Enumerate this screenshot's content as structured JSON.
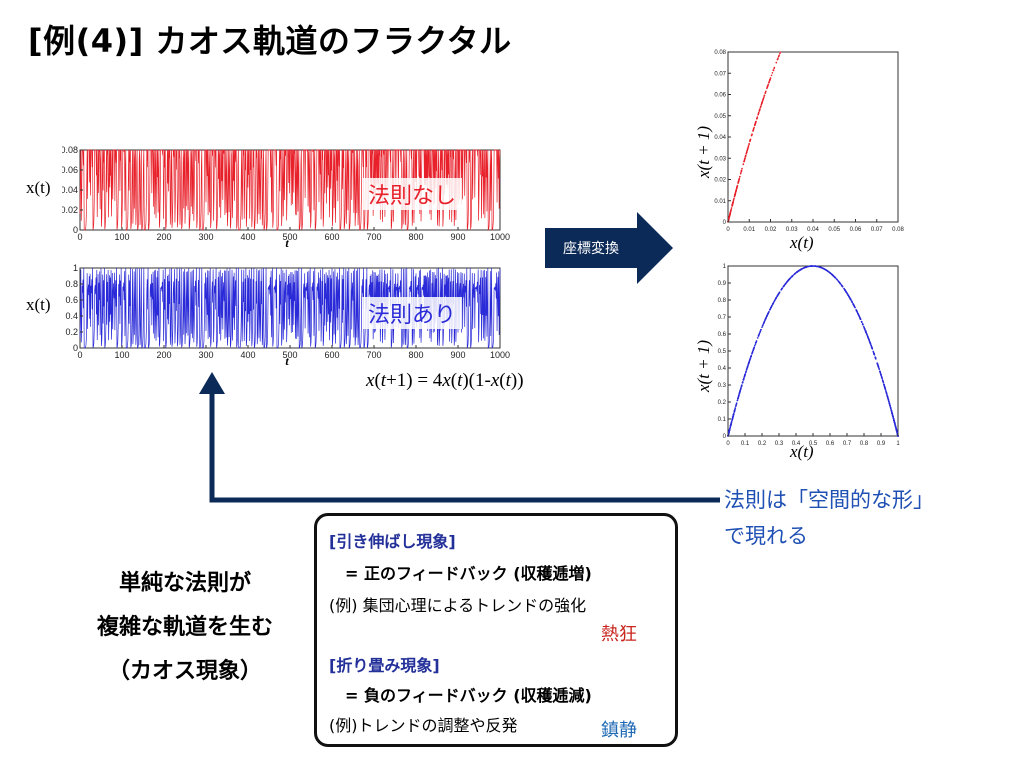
{
  "title": "[例(4)] カオス軌道のフラクタル",
  "colors": {
    "red_series": "#e8202a",
    "blue_series": "#2a2ad8",
    "arrow": "#0c2a58",
    "law_caption": "#1f50b4",
    "heading": "#23309a",
    "frenzy": "#c8261e",
    "calm": "#1f6ab4"
  },
  "timeseries_top": {
    "y_label": "x(t)",
    "x_label": "t",
    "label": "法則なし",
    "x_ticks": [
      "0",
      "100",
      "200",
      "300",
      "400",
      "500",
      "600",
      "700",
      "800",
      "900",
      "1000"
    ],
    "y_ticks": [
      "0",
      "0.02",
      "0.04",
      "0.06",
      "0.08"
    ]
  },
  "timeseries_bottom": {
    "y_label": "x(t)",
    "x_label": "t",
    "label": "法則あり",
    "x_ticks": [
      "0",
      "100",
      "200",
      "300",
      "400",
      "500",
      "600",
      "700",
      "800",
      "900",
      "1000"
    ],
    "y_ticks": [
      "0",
      "0.2",
      "0.4",
      "0.6",
      "0.8",
      "1"
    ]
  },
  "formula": {
    "p1": "x",
    "p2": "(",
    "p3": "t",
    "p4": "+1) = 4",
    "p5": "x",
    "p6": "(",
    "p7": "t",
    "p8": ")(1-",
    "p9": "x",
    "p10": "(",
    "p11": "t",
    "p12": "))"
  },
  "transform_label": "座標変換",
  "scatter": {
    "x_label": "x(t)",
    "y_label": "x(t + 1)",
    "x_ticks": [
      "0",
      "0.01",
      "0.02",
      "0.03",
      "0.04",
      "0.05",
      "0.06",
      "0.07",
      "0.08"
    ],
    "y_ticks": [
      "0",
      "0.01",
      "0.02",
      "0.03",
      "0.04",
      "0.05",
      "0.06",
      "0.07",
      "0.08"
    ]
  },
  "parabola": {
    "x_label": "x(t)",
    "y_label": "x(t + 1)",
    "x_ticks": [
      "0",
      "0.1",
      "0.2",
      "0.3",
      "0.4",
      "0.5",
      "0.6",
      "0.7",
      "0.8",
      "0.9",
      "1"
    ],
    "y_ticks": [
      "0",
      "0.1",
      "0.2",
      "0.3",
      "0.4",
      "0.5",
      "0.6",
      "0.7",
      "0.8",
      "0.9",
      "1"
    ]
  },
  "law_caption": {
    "line1": "法則は「空間的な形」",
    "line2": "で現れる"
  },
  "left_caption": {
    "line1": "単純な法則が",
    "line2": "複雑な軌道を生む",
    "line3": "（カオス現象）"
  },
  "box": {
    "stretch_heading": "[引き伸ばし現象]",
    "positive_feedback": "= 正のフィードバック (収穫逓増)",
    "example1": "(例) 集団心理によるトレンドの強化",
    "frenzy": "熱狂",
    "fold_heading": "[折り畳み現象]",
    "negative_feedback": "= 負のフィードバック (収穫逓減)",
    "example2": "(例)トレンドの調整や反発",
    "calm": "鎮静"
  },
  "chart_data": [
    {
      "type": "line",
      "series_color": "#e8202a",
      "x_range": [
        0,
        1000
      ],
      "ylim": [
        0,
        0.08
      ],
      "x_label": "t",
      "y_label": "x(t)",
      "model": "x(t+1) = 4x(t)(1-x(t))"
    },
    {
      "type": "line",
      "series_color": "#2a2ad8",
      "x_range": [
        0,
        1000
      ],
      "ylim": [
        0,
        1
      ],
      "x_label": "t",
      "y_label": "x(t)",
      "model": "x(t+1) = 4x(t)(1-x(t))"
    },
    {
      "type": "scatter",
      "series_color": "#e8202a",
      "xlim": [
        0,
        0.08
      ],
      "ylim": [
        0,
        0.08
      ],
      "x_label": "x(t)",
      "y_label": "x(t + 1)"
    },
    {
      "type": "scatter",
      "series_color": "#2a2ad8",
      "xlim": [
        0,
        1
      ],
      "ylim": [
        0,
        1
      ],
      "x_label": "x(t)",
      "y_label": "x(t + 1)",
      "curve": "y = 4x(1-x)"
    }
  ]
}
